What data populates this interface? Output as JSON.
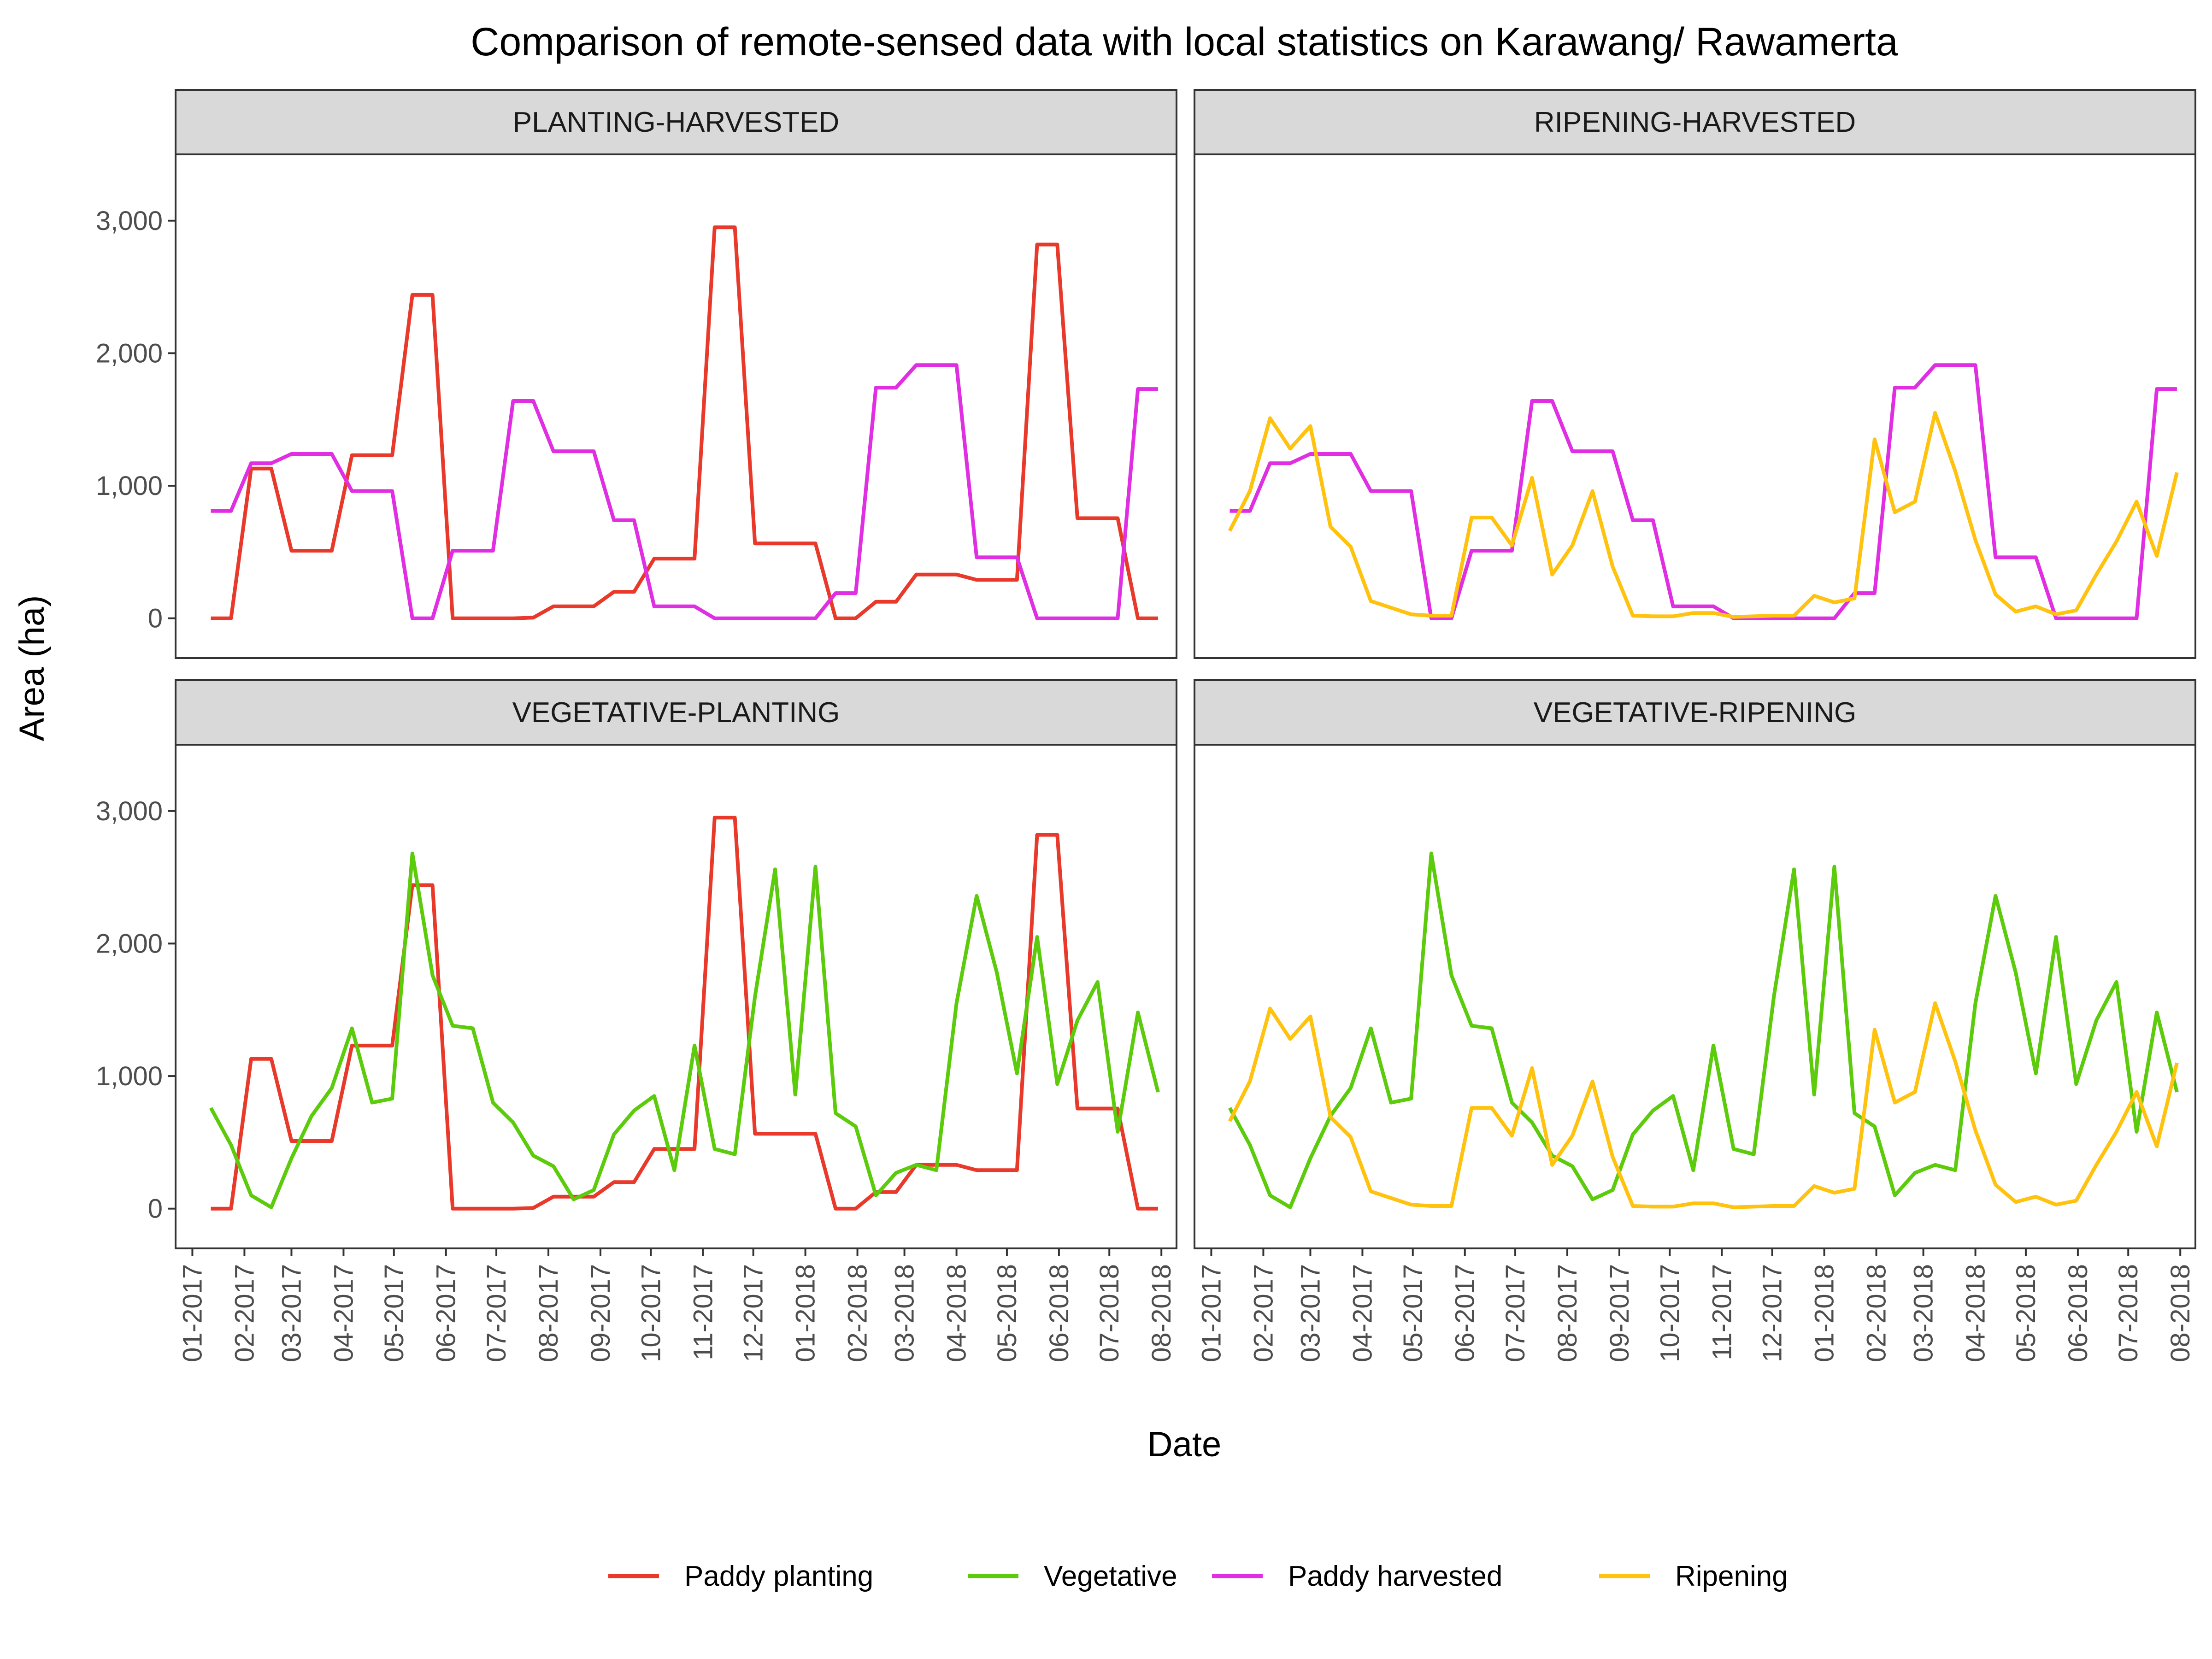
{
  "chart_data": {
    "type": "line",
    "title": "Comparison of remote-sensed data with local statistics on Karawang/ Rawamerta",
    "xlabel": "Date",
    "ylabel": "Area (ha)",
    "ylim": [
      -300,
      3500
    ],
    "y_ticks": [
      0,
      1000,
      2000,
      3000
    ],
    "y_tick_labels": [
      "0",
      "1,000",
      "2,000",
      "3,000"
    ],
    "x_ticks": [
      "2017-01-01",
      "2017-02-01",
      "2017-03-01",
      "2017-04-01",
      "2017-05-01",
      "2017-06-01",
      "2017-07-01",
      "2017-08-01",
      "2017-09-01",
      "2017-10-01",
      "2017-11-01",
      "2017-12-01",
      "2018-01-01",
      "2018-02-01",
      "2018-03-01",
      "2018-04-01",
      "2018-05-01",
      "2018-06-01",
      "2018-07-01",
      "2018-08-01"
    ],
    "x_tick_labels": [
      "01-2017",
      "02-2017",
      "03-2017",
      "04-2017",
      "05-2017",
      "06-2017",
      "07-2017",
      "08-2017",
      "09-2017",
      "10-2017",
      "11-2017",
      "12-2017",
      "01-2018",
      "02-2018",
      "03-2018",
      "04-2018",
      "05-2018",
      "06-2018",
      "07-2018",
      "08-2018"
    ],
    "xlim": [
      "2016-12-22",
      "2018-08-10"
    ],
    "grid": false,
    "legend_position": "bottom",
    "series": [
      {
        "name": "Paddy planting",
        "color": "#e8392a",
        "x": [
          "2017-01-12",
          "2017-01-24",
          "2017-02-05",
          "2017-02-17",
          "2017-03-01",
          "2017-03-13",
          "2017-03-25",
          "2017-04-06",
          "2017-04-18",
          "2017-04-30",
          "2017-05-12",
          "2017-05-24",
          "2017-06-05",
          "2017-06-17",
          "2017-06-29",
          "2017-07-11",
          "2017-07-23",
          "2017-08-04",
          "2017-08-16",
          "2017-08-28",
          "2017-09-09",
          "2017-09-21",
          "2017-10-03",
          "2017-10-15",
          "2017-10-27",
          "2017-11-08",
          "2017-11-20",
          "2017-12-02",
          "2017-12-14",
          "2017-12-26",
          "2018-01-07",
          "2018-01-19",
          "2018-01-31",
          "2018-02-12",
          "2018-02-24",
          "2018-03-08",
          "2018-03-20",
          "2018-04-01",
          "2018-04-13",
          "2018-04-25",
          "2018-05-07",
          "2018-05-19",
          "2018-05-31",
          "2018-06-12",
          "2018-06-24",
          "2018-07-06",
          "2018-07-18",
          "2018-07-30"
        ],
        "y": [
          0,
          0,
          1130,
          1130,
          510,
          510,
          510,
          1230,
          1230,
          1230,
          2440,
          2440,
          0,
          0,
          0,
          0,
          5,
          90,
          90,
          90,
          200,
          200,
          450,
          450,
          450,
          2950,
          2950,
          565,
          565,
          565,
          565,
          0,
          0,
          125,
          125,
          330,
          330,
          330,
          290,
          290,
          290,
          2820,
          2820,
          755,
          755,
          755,
          0,
          0
        ]
      },
      {
        "name": "Vegetative",
        "color": "#5ccb0c",
        "x": [
          "2017-01-12",
          "2017-01-24",
          "2017-02-05",
          "2017-02-17",
          "2017-03-01",
          "2017-03-13",
          "2017-03-25",
          "2017-04-06",
          "2017-04-18",
          "2017-04-30",
          "2017-05-12",
          "2017-05-24",
          "2017-06-05",
          "2017-06-17",
          "2017-06-29",
          "2017-07-11",
          "2017-07-23",
          "2017-08-04",
          "2017-08-16",
          "2017-08-28",
          "2017-09-09",
          "2017-09-21",
          "2017-10-03",
          "2017-10-15",
          "2017-10-27",
          "2017-11-08",
          "2017-11-20",
          "2017-12-02",
          "2017-12-14",
          "2017-12-26",
          "2018-01-07",
          "2018-01-19",
          "2018-01-31",
          "2018-02-12",
          "2018-02-24",
          "2018-03-08",
          "2018-03-20",
          "2018-04-01",
          "2018-04-13",
          "2018-04-25",
          "2018-05-07",
          "2018-05-19",
          "2018-05-31",
          "2018-06-12",
          "2018-06-24",
          "2018-07-06",
          "2018-07-18",
          "2018-07-30"
        ],
        "y": [
          760,
          480,
          100,
          10,
          380,
          700,
          910,
          1360,
          800,
          830,
          2680,
          1760,
          1380,
          1360,
          800,
          650,
          400,
          320,
          70,
          140,
          560,
          740,
          850,
          290,
          1230,
          450,
          410,
          1600,
          2560,
          860,
          2580,
          720,
          620,
          100,
          270,
          330,
          290,
          1550,
          2360,
          1780,
          1020,
          2050,
          940,
          1420,
          1710,
          580,
          1480,
          880
        ]
      },
      {
        "name": "Paddy harvested",
        "color": "#e02ee3",
        "x": [
          "2017-01-12",
          "2017-01-24",
          "2017-02-05",
          "2017-02-17",
          "2017-03-01",
          "2017-03-13",
          "2017-03-25",
          "2017-04-06",
          "2017-04-18",
          "2017-04-30",
          "2017-05-12",
          "2017-05-24",
          "2017-06-05",
          "2017-06-17",
          "2017-06-29",
          "2017-07-11",
          "2017-07-23",
          "2017-08-04",
          "2017-08-16",
          "2017-08-28",
          "2017-09-09",
          "2017-09-21",
          "2017-10-03",
          "2017-10-15",
          "2017-10-27",
          "2017-11-08",
          "2017-11-20",
          "2017-12-02",
          "2017-12-14",
          "2017-12-26",
          "2018-01-07",
          "2018-01-19",
          "2018-01-31",
          "2018-02-12",
          "2018-02-24",
          "2018-03-08",
          "2018-03-20",
          "2018-04-01",
          "2018-04-13",
          "2018-04-25",
          "2018-05-07",
          "2018-05-19",
          "2018-05-31",
          "2018-06-12",
          "2018-06-24",
          "2018-07-06",
          "2018-07-18",
          "2018-07-30"
        ],
        "y": [
          810,
          810,
          1170,
          1170,
          1240,
          1240,
          1240,
          960,
          960,
          960,
          0,
          0,
          510,
          510,
          510,
          1640,
          1640,
          1260,
          1260,
          1260,
          740,
          740,
          90,
          90,
          90,
          0,
          0,
          0,
          0,
          0,
          0,
          190,
          190,
          1740,
          1740,
          1910,
          1910,
          1910,
          460,
          460,
          460,
          0,
          0,
          0,
          0,
          0,
          1730,
          1730
        ]
      },
      {
        "name": "Ripening",
        "color": "#ffc20e",
        "x": [
          "2017-01-12",
          "2017-01-24",
          "2017-02-05",
          "2017-02-17",
          "2017-03-01",
          "2017-03-13",
          "2017-03-25",
          "2017-04-06",
          "2017-04-18",
          "2017-04-30",
          "2017-05-12",
          "2017-05-24",
          "2017-06-05",
          "2017-06-17",
          "2017-06-29",
          "2017-07-11",
          "2017-07-23",
          "2017-08-04",
          "2017-08-16",
          "2017-08-28",
          "2017-09-09",
          "2017-09-21",
          "2017-10-03",
          "2017-10-15",
          "2017-10-27",
          "2017-11-08",
          "2017-11-20",
          "2017-12-02",
          "2017-12-14",
          "2017-12-26",
          "2018-01-07",
          "2018-01-19",
          "2018-01-31",
          "2018-02-12",
          "2018-02-24",
          "2018-03-08",
          "2018-03-20",
          "2018-04-01",
          "2018-04-13",
          "2018-04-25",
          "2018-05-07",
          "2018-05-19",
          "2018-05-31",
          "2018-06-12",
          "2018-06-24",
          "2018-07-06",
          "2018-07-18",
          "2018-07-30"
        ],
        "y": [
          660,
          960,
          1510,
          1280,
          1450,
          690,
          540,
          130,
          80,
          30,
          20,
          20,
          760,
          760,
          550,
          1060,
          330,
          550,
          960,
          390,
          20,
          15,
          15,
          40,
          40,
          10,
          15,
          20,
          20,
          170,
          120,
          150,
          1350,
          800,
          880,
          1550,
          1110,
          590,
          180,
          50,
          90,
          30,
          60,
          330,
          580,
          880,
          470,
          1100
        ]
      }
    ],
    "panels": [
      {
        "label": "PLANTING-HARVESTED",
        "series": [
          "Paddy planting",
          "Paddy harvested"
        ]
      },
      {
        "label": "RIPENING-HARVESTED",
        "series": [
          "Paddy harvested",
          "Ripening"
        ]
      },
      {
        "label": "VEGETATIVE-PLANTING",
        "series": [
          "Paddy planting",
          "Vegetative"
        ]
      },
      {
        "label": "VEGETATIVE-RIPENING",
        "series": [
          "Vegetative",
          "Ripening"
        ]
      }
    ]
  }
}
